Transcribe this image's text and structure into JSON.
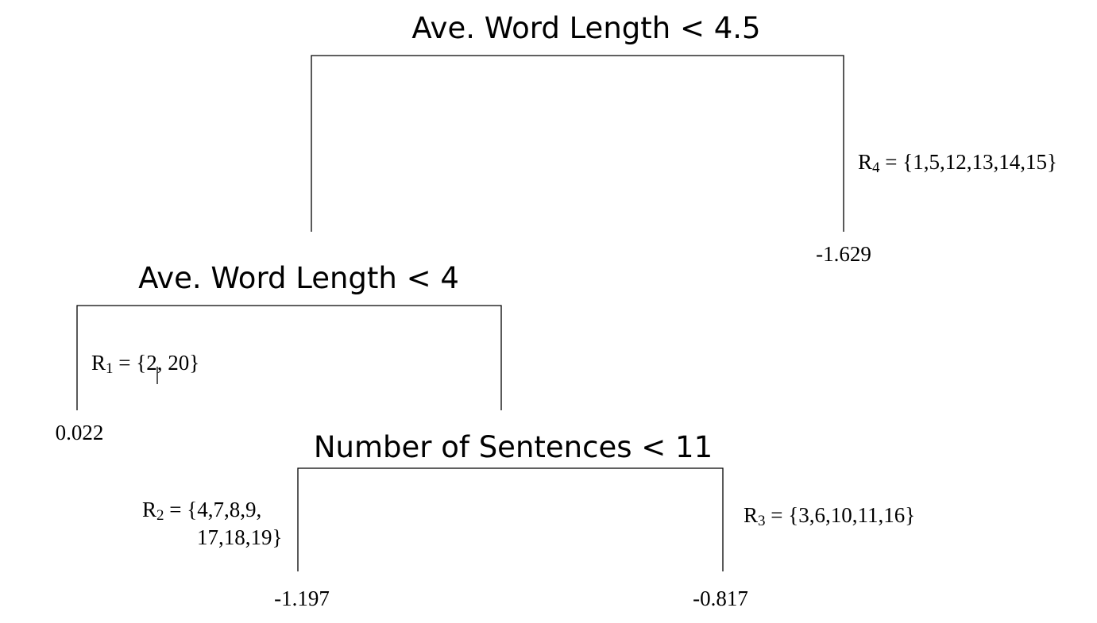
{
  "splits": {
    "root": "Ave. Word Length < 4.5",
    "left": "Ave. Word Length < 4",
    "inner": "Number of Sentences < 11"
  },
  "leaves": {
    "r1": {
      "letter": "R",
      "index": "1",
      "rest": " = {2, 20}",
      "value": "0.022"
    },
    "r2": {
      "letter": "R",
      "index": "2",
      "rest": " = {4,7,8,9,",
      "rest2": "17,18,19}",
      "value": "-1.197"
    },
    "r3": {
      "letter": "R",
      "index": "3",
      "rest": " = {3,6,10,11,16}",
      "value": "-0.817"
    },
    "r4": {
      "letter": "R",
      "index": "4",
      "rest": " = {1,5,12,13,14,15}",
      "value": "-1.629"
    }
  }
}
